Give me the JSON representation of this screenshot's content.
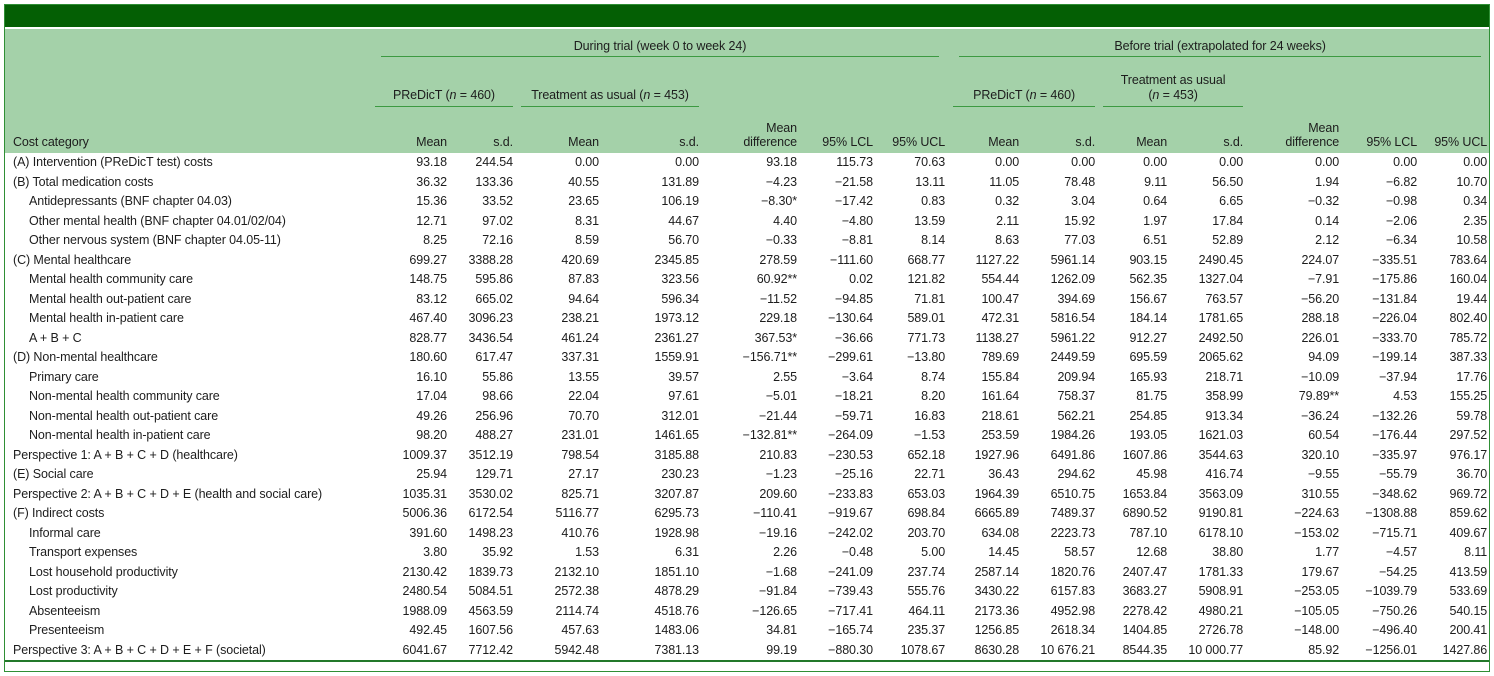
{
  "colors": {
    "top_band": "#045f04",
    "header_background": "#a4d1a9",
    "header_rule": "#3c9a41",
    "frame_border": "#2f8f35",
    "bottom_rule": "#23782a",
    "text": "#1d1d1d"
  },
  "header": {
    "group_during": "During trial (week 0 to week 24)",
    "group_before": "Before trial (extrapolated for 24 weeks)",
    "predict_pre": "PReDicT (",
    "predict_n": "n",
    "predict_post": " = 460)",
    "tau_pre": "Treatment as usual (",
    "tau_n": "n",
    "tau_post": " = 453)",
    "tau_wrap_line1": "Treatment as usual",
    "tau_wrap_pre": "(",
    "tau_wrap_n": "n",
    "tau_wrap_post": " = 453)",
    "cost_category": "Cost category",
    "col_mean": "Mean",
    "col_sd": "s.d.",
    "col_mean_difference": "Mean\ndifference",
    "col_lcl": "95% LCL",
    "col_ucl": "95% UCL"
  },
  "table": {
    "rows": [
      {
        "label": "(A) Intervention (PReDicT test) costs",
        "indent": false,
        "values": [
          "93.18",
          "244.54",
          "0.00",
          "0.00",
          "93.18",
          "115.73",
          "70.63",
          "0.00",
          "0.00",
          "0.00",
          "0.00",
          "0.00",
          "0.00",
          "0.00"
        ]
      },
      {
        "label": "(B) Total medication costs",
        "indent": false,
        "values": [
          "36.32",
          "133.36",
          "40.55",
          "131.89",
          "−4.23",
          "−21.58",
          "13.11",
          "11.05",
          "78.48",
          "9.11",
          "56.50",
          "1.94",
          "−6.82",
          "10.70"
        ]
      },
      {
        "label": "Antidepressants (BNF chapter 04.03)",
        "indent": true,
        "values": [
          "15.36",
          "33.52",
          "23.65",
          "106.19",
          "−8.30*",
          "−17.42",
          "0.83",
          "0.32",
          "3.04",
          "0.64",
          "6.65",
          "−0.32",
          "−0.98",
          "0.34"
        ]
      },
      {
        "label": "Other mental health (BNF chapter 04.01/02/04)",
        "indent": true,
        "values": [
          "12.71",
          "97.02",
          "8.31",
          "44.67",
          "4.40",
          "−4.80",
          "13.59",
          "2.11",
          "15.92",
          "1.97",
          "17.84",
          "0.14",
          "−2.06",
          "2.35"
        ]
      },
      {
        "label": "Other nervous system (BNF chapter 04.05-11)",
        "indent": true,
        "values": [
          "8.25",
          "72.16",
          "8.59",
          "56.70",
          "−0.33",
          "−8.81",
          "8.14",
          "8.63",
          "77.03",
          "6.51",
          "52.89",
          "2.12",
          "−6.34",
          "10.58"
        ]
      },
      {
        "label": "(C) Mental healthcare",
        "indent": false,
        "values": [
          "699.27",
          "3388.28",
          "420.69",
          "2345.85",
          "278.59",
          "−111.60",
          "668.77",
          "1127.22",
          "5961.14",
          "903.15",
          "2490.45",
          "224.07",
          "−335.51",
          "783.64"
        ]
      },
      {
        "label": "Mental health community care",
        "indent": true,
        "values": [
          "148.75",
          "595.86",
          "87.83",
          "323.56",
          "60.92**",
          "0.02",
          "121.82",
          "554.44",
          "1262.09",
          "562.35",
          "1327.04",
          "−7.91",
          "−175.86",
          "160.04"
        ]
      },
      {
        "label": "Mental health out-patient care",
        "indent": true,
        "values": [
          "83.12",
          "665.02",
          "94.64",
          "596.34",
          "−11.52",
          "−94.85",
          "71.81",
          "100.47",
          "394.69",
          "156.67",
          "763.57",
          "−56.20",
          "−131.84",
          "19.44"
        ]
      },
      {
        "label": "Mental health in-patient care",
        "indent": true,
        "values": [
          "467.40",
          "3096.23",
          "238.21",
          "1973.12",
          "229.18",
          "−130.64",
          "589.01",
          "472.31",
          "5816.54",
          "184.14",
          "1781.65",
          "288.18",
          "−226.04",
          "802.40"
        ]
      },
      {
        "label": "A + B + C",
        "indent": true,
        "values": [
          "828.77",
          "3436.54",
          "461.24",
          "2361.27",
          "367.53*",
          "−36.66",
          "771.73",
          "1138.27",
          "5961.22",
          "912.27",
          "2492.50",
          "226.01",
          "−333.70",
          "785.72"
        ]
      },
      {
        "label": "(D) Non-mental healthcare",
        "indent": false,
        "values": [
          "180.60",
          "617.47",
          "337.31",
          "1559.91",
          "−156.71**",
          "−299.61",
          "−13.80",
          "789.69",
          "2449.59",
          "695.59",
          "2065.62",
          "94.09",
          "−199.14",
          "387.33"
        ]
      },
      {
        "label": "Primary care",
        "indent": true,
        "values": [
          "16.10",
          "55.86",
          "13.55",
          "39.57",
          "2.55",
          "−3.64",
          "8.74",
          "155.84",
          "209.94",
          "165.93",
          "218.71",
          "−10.09",
          "−37.94",
          "17.76"
        ]
      },
      {
        "label": "Non-mental health community care",
        "indent": true,
        "values": [
          "17.04",
          "98.66",
          "22.04",
          "97.61",
          "−5.01",
          "−18.21",
          "8.20",
          "161.64",
          "758.37",
          "81.75",
          "358.99",
          "79.89**",
          "4.53",
          "155.25"
        ]
      },
      {
        "label": "Non-mental health out-patient care",
        "indent": true,
        "values": [
          "49.26",
          "256.96",
          "70.70",
          "312.01",
          "−21.44",
          "−59.71",
          "16.83",
          "218.61",
          "562.21",
          "254.85",
          "913.34",
          "−36.24",
          "−132.26",
          "59.78"
        ]
      },
      {
        "label": "Non-mental health in-patient care",
        "indent": true,
        "values": [
          "98.20",
          "488.27",
          "231.01",
          "1461.65",
          "−132.81**",
          "−264.09",
          "−1.53",
          "253.59",
          "1984.26",
          "193.05",
          "1621.03",
          "60.54",
          "−176.44",
          "297.52"
        ]
      },
      {
        "label": "Perspective 1: A + B + C + D (healthcare)",
        "indent": false,
        "values": [
          "1009.37",
          "3512.19",
          "798.54",
          "3185.88",
          "210.83",
          "−230.53",
          "652.18",
          "1927.96",
          "6491.86",
          "1607.86",
          "3544.63",
          "320.10",
          "−335.97",
          "976.17"
        ]
      },
      {
        "label": "(E) Social care",
        "indent": false,
        "values": [
          "25.94",
          "129.71",
          "27.17",
          "230.23",
          "−1.23",
          "−25.16",
          "22.71",
          "36.43",
          "294.62",
          "45.98",
          "416.74",
          "−9.55",
          "−55.79",
          "36.70"
        ]
      },
      {
        "label": "Perspective 2: A + B + C + D + E (health and social care)",
        "indent": false,
        "values": [
          "1035.31",
          "3530.02",
          "825.71",
          "3207.87",
          "209.60",
          "−233.83",
          "653.03",
          "1964.39",
          "6510.75",
          "1653.84",
          "3563.09",
          "310.55",
          "−348.62",
          "969.72"
        ]
      },
      {
        "label": "(F) Indirect costs",
        "indent": false,
        "values": [
          "5006.36",
          "6172.54",
          "5116.77",
          "6295.73",
          "−110.41",
          "−919.67",
          "698.84",
          "6665.89",
          "7489.37",
          "6890.52",
          "9190.81",
          "−224.63",
          "−1308.88",
          "859.62"
        ]
      },
      {
        "label": "Informal care",
        "indent": true,
        "values": [
          "391.60",
          "1498.23",
          "410.76",
          "1928.98",
          "−19.16",
          "−242.02",
          "203.70",
          "634.08",
          "2223.73",
          "787.10",
          "6178.10",
          "−153.02",
          "−715.71",
          "409.67"
        ]
      },
      {
        "label": "Transport expenses",
        "indent": true,
        "values": [
          "3.80",
          "35.92",
          "1.53",
          "6.31",
          "2.26",
          "−0.48",
          "5.00",
          "14.45",
          "58.57",
          "12.68",
          "38.80",
          "1.77",
          "−4.57",
          "8.11"
        ]
      },
      {
        "label": "Lost household productivity",
        "indent": true,
        "values": [
          "2130.42",
          "1839.73",
          "2132.10",
          "1851.10",
          "−1.68",
          "−241.09",
          "237.74",
          "2587.14",
          "1820.76",
          "2407.47",
          "1781.33",
          "179.67",
          "−54.25",
          "413.59"
        ]
      },
      {
        "label": "Lost productivity",
        "indent": true,
        "values": [
          "2480.54",
          "5084.51",
          "2572.38",
          "4878.29",
          "−91.84",
          "−739.43",
          "555.76",
          "3430.22",
          "6157.83",
          "3683.27",
          "5908.91",
          "−253.05",
          "−1039.79",
          "533.69"
        ]
      },
      {
        "label": "Absenteeism",
        "indent": true,
        "values": [
          "1988.09",
          "4563.59",
          "2114.74",
          "4518.76",
          "−126.65",
          "−717.41",
          "464.11",
          "2173.36",
          "4952.98",
          "2278.42",
          "4980.21",
          "−105.05",
          "−750.26",
          "540.15"
        ]
      },
      {
        "label": "Presenteeism",
        "indent": true,
        "values": [
          "492.45",
          "1607.56",
          "457.63",
          "1483.06",
          "34.81",
          "−165.74",
          "235.37",
          "1256.85",
          "2618.34",
          "1404.85",
          "2726.78",
          "−148.00",
          "−496.40",
          "200.41"
        ]
      },
      {
        "label": "Perspective 3: A + B + C + D + E + F (societal)",
        "indent": false,
        "values": [
          "6041.67",
          "7712.42",
          "5942.48",
          "7381.13",
          "99.19",
          "−880.30",
          "1078.67",
          "8630.28",
          "10 676.21",
          "8544.35",
          "10 000.77",
          "85.92",
          "−1256.01",
          "1427.86"
        ]
      }
    ]
  }
}
